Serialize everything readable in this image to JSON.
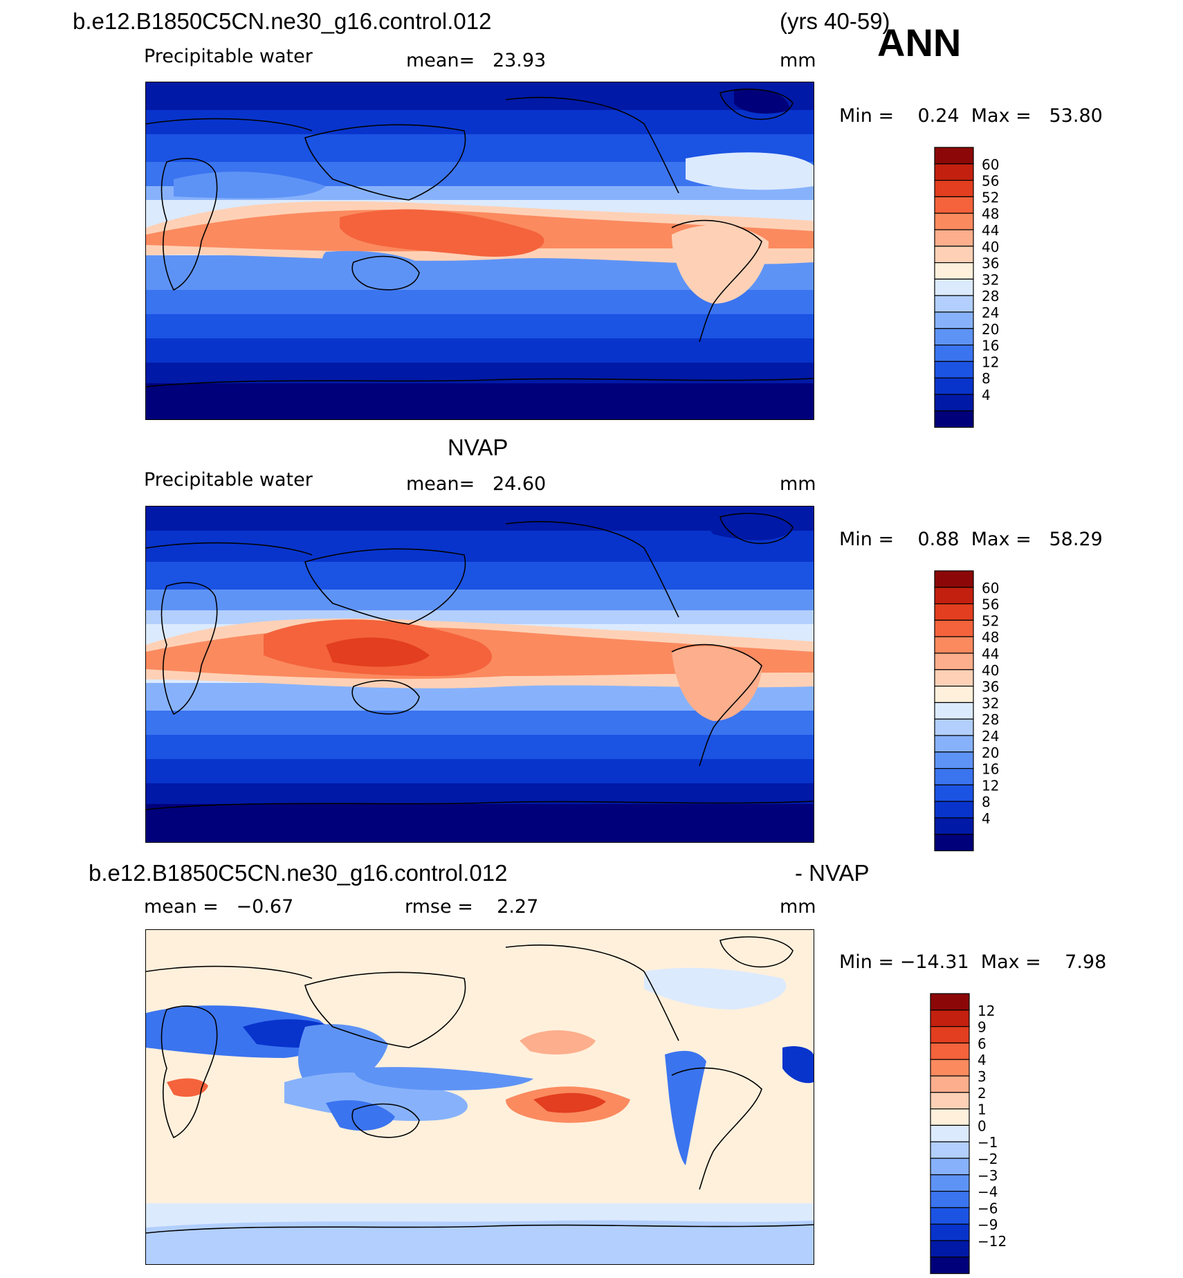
{
  "header": {
    "case_name": "b.e12.B1850C5CN.ne30_g16.control.012",
    "years": "(yrs 40-59)",
    "season": "ANN"
  },
  "panels": [
    {
      "id": "model",
      "title": "",
      "left_label": "Precipitable water",
      "center_label": "mean=   23.93",
      "units": "mm",
      "minmax": "Min =    0.24  Max =   53.80",
      "colorbar": {
        "colors": [
          "#00007a",
          "#0019a6",
          "#0834cc",
          "#1b53e3",
          "#3b74ef",
          "#5e93f6",
          "#87b2fb",
          "#b2cffd",
          "#dceafe",
          "#fff0dc",
          "#fed1b6",
          "#fdae8c",
          "#fb8a5f",
          "#f4633c",
          "#e23e1f",
          "#c3200f",
          "#8c0808"
        ],
        "labels": [
          "4",
          "8",
          "12",
          "16",
          "20",
          "24",
          "28",
          "32",
          "36",
          "40",
          "44",
          "48",
          "52",
          "56",
          "60"
        ]
      }
    },
    {
      "id": "obs",
      "title": "NVAP",
      "left_label": "Precipitable water",
      "center_label": "mean=   24.60",
      "units": "mm",
      "minmax": "Min =    0.88  Max =   58.29",
      "colorbar": {
        "colors": [
          "#00007a",
          "#0019a6",
          "#0834cc",
          "#1b53e3",
          "#3b74ef",
          "#5e93f6",
          "#87b2fb",
          "#b2cffd",
          "#dceafe",
          "#fff0dc",
          "#fed1b6",
          "#fdae8c",
          "#fb8a5f",
          "#f4633c",
          "#e23e1f",
          "#c3200f",
          "#8c0808"
        ],
        "labels": [
          "4",
          "8",
          "12",
          "16",
          "20",
          "24",
          "28",
          "32",
          "36",
          "40",
          "44",
          "48",
          "52",
          "56",
          "60"
        ]
      }
    },
    {
      "id": "diff",
      "title_left": "b.e12.B1850C5CN.ne30_g16.control.012",
      "title_right": "- NVAP",
      "left_label": "mean =   −0.67",
      "center_label": "rmse =    2.27",
      "units": "mm",
      "minmax": "Min = −14.31  Max =    7.98",
      "colorbar": {
        "colors": [
          "#00007a",
          "#0019a6",
          "#0834cc",
          "#1b53e3",
          "#3b74ef",
          "#5e93f6",
          "#87b2fb",
          "#b2cffd",
          "#dceafe",
          "#fff0dc",
          "#fed1b6",
          "#fdae8c",
          "#fb8a5f",
          "#f4633c",
          "#e23e1f",
          "#c3200f",
          "#8c0808"
        ],
        "labels": [
          "−12",
          "−9",
          "−6",
          "−4",
          "−3",
          "−2",
          "−1",
          "0",
          "1",
          "2",
          "3",
          "4",
          "6",
          "9",
          "12"
        ]
      }
    }
  ]
}
